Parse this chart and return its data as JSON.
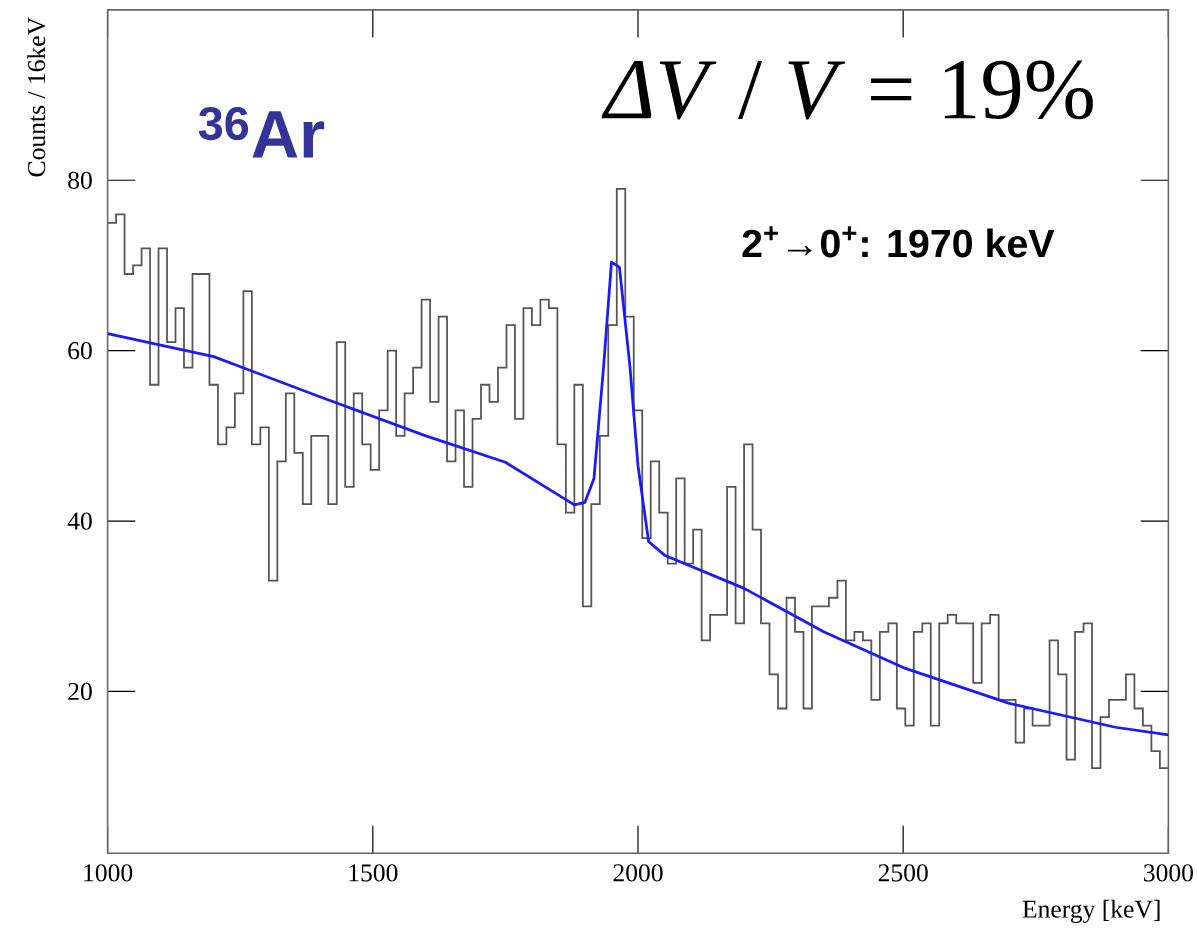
{
  "chart_data": {
    "type": "histogram",
    "xlabel": "Energy [keV]",
    "ylabel": "Counts / 16keV",
    "annotations": [
      "$^{36}$Ar",
      "*ΔV* / *V* = 19%",
      "2$^{+}$→0$^{+}$: 1970 keV"
    ],
    "bins": [
      1000,
      1016,
      1032,
      1048,
      1064,
      1080,
      1096,
      1112,
      1128,
      1144,
      1160,
      1176,
      1192,
      1208,
      1224,
      1240,
      1256,
      1272,
      1288,
      1304,
      1320,
      1336,
      1352,
      1368,
      1384,
      1400,
      1416,
      1432,
      1448,
      1464,
      1480,
      1496,
      1512,
      1528,
      1544,
      1560,
      1576,
      1592,
      1608,
      1624,
      1640,
      1656,
      1672,
      1688,
      1704,
      1720,
      1736,
      1752,
      1768,
      1784,
      1800,
      1816,
      1832,
      1848,
      1864,
      1880,
      1896,
      1912,
      1928,
      1944,
      1960,
      1976,
      1992,
      2008,
      2024,
      2040,
      2056,
      2072,
      2088,
      2104,
      2120,
      2136,
      2152,
      2168,
      2184,
      2200,
      2216,
      2232,
      2248,
      2264,
      2280,
      2296,
      2312,
      2328,
      2344,
      2360,
      2376,
      2392,
      2408,
      2424,
      2440,
      2456,
      2472,
      2488,
      2504,
      2520,
      2536,
      2552,
      2568,
      2584,
      2600,
      2616,
      2632,
      2648,
      2664,
      2680,
      2696,
      2712,
      2728,
      2744,
      2760,
      2776,
      2792,
      2808,
      2824,
      2840,
      2856,
      2872,
      2888,
      2904,
      2920,
      2936,
      2952,
      2968,
      2984,
      3000
    ],
    "values": [
      75,
      76,
      69,
      70,
      72,
      56,
      72,
      61,
      65,
      58,
      69,
      69,
      56,
      49,
      51,
      55,
      67,
      49,
      51,
      33,
      47,
      55,
      48,
      42,
      50,
      50,
      42,
      61,
      44,
      55,
      49,
      46,
      53,
      60,
      50,
      55,
      58,
      66,
      54,
      64,
      47,
      53,
      44,
      52,
      56,
      54,
      58,
      63,
      52,
      65,
      63,
      66,
      65,
      49,
      41,
      56,
      30,
      42,
      50,
      63,
      79,
      64,
      53,
      38,
      47,
      41,
      35,
      45,
      35,
      39,
      26,
      29,
      29,
      44,
      28,
      49,
      39,
      28,
      22,
      18,
      31,
      27,
      18,
      30,
      30,
      31,
      33,
      26,
      27,
      26,
      19,
      27,
      28,
      18,
      16,
      27,
      28,
      16,
      28,
      29,
      28,
      28,
      21,
      28,
      29,
      19,
      19,
      14,
      18,
      16,
      16,
      26,
      22,
      12,
      27,
      28,
      11,
      17,
      19,
      19,
      22,
      18,
      16,
      13,
      11
    ],
    "color": "#555555",
    "series": [
      {
        "type": "line",
        "color": "#1a1aff",
        "x": [
          1000,
          1200,
          1400,
          1600,
          1750,
          1880,
          1900,
          1917,
          1935,
          1950,
          1965,
          1985,
          2000,
          2020,
          2050,
          2200,
          2350,
          2500,
          2700,
          2900,
          3000
        ],
        "values": [
          62,
          59.3,
          54.6,
          50,
          46.9,
          41.9,
          42.2,
          45,
          58,
          70.4,
          69.8,
          58,
          46.5,
          37.6,
          36,
          32.1,
          27,
          22.8,
          18.6,
          15.8,
          14.9
        ]
      }
    ],
    "xlim": [
      1000,
      3000
    ],
    "ylim": [
      1,
      100
    ],
    "xticks": [
      1000,
      1500,
      2000,
      2500,
      3000
    ],
    "yticks": [
      20,
      40,
      60,
      80
    ],
    "grid": false
  }
}
